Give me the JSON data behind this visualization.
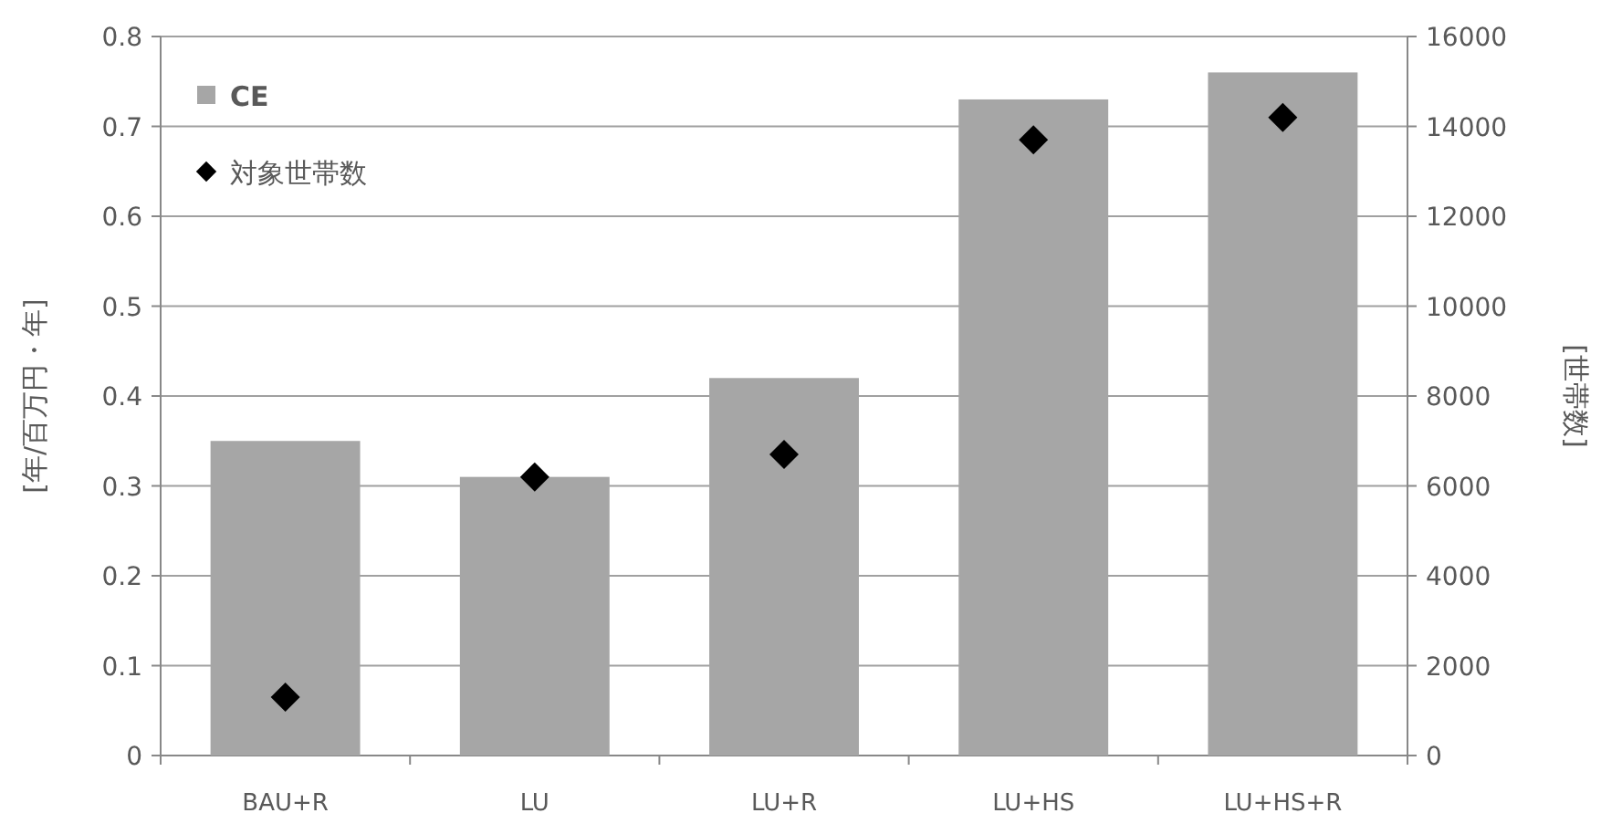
{
  "chart_data": {
    "type": "bar",
    "ylabel": "[年/百万円・年]",
    "y2label": "[世帯数]",
    "categories": [
      "BAU+R",
      "LU",
      "LU+R",
      "LU+HS",
      "LU+HS+R"
    ],
    "series": [
      {
        "name": "CE",
        "color": "#a6a6a6",
        "values": [
          0.35,
          0.31,
          0.42,
          0.73,
          0.76
        ]
      },
      {
        "name": "対象世帯数",
        "type": "scatter",
        "axis": "y2",
        "color": "#000000",
        "marker": "diamond",
        "values": [
          1300,
          6200,
          6700,
          13700,
          14200
        ]
      }
    ],
    "ylim": [
      0,
      0.8
    ],
    "yticks": [
      0,
      0.1,
      0.2,
      0.3,
      0.4,
      0.5,
      0.6,
      0.7,
      0.8
    ],
    "y2lim": [
      0,
      16000
    ],
    "y2ticks": [
      0,
      2000,
      4000,
      6000,
      8000,
      10000,
      12000,
      14000,
      16000
    ],
    "grid": "y",
    "legend": "top left"
  }
}
